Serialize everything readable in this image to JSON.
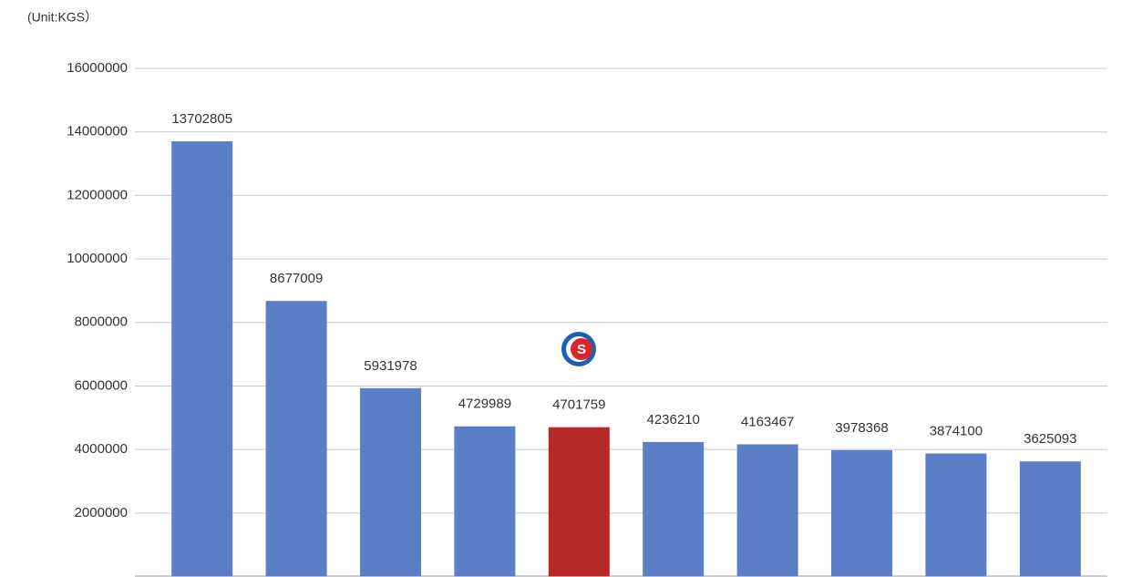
{
  "chart_data": {
    "type": "bar",
    "unit_label": "(Unit:KGS）",
    "categories": [
      null,
      null,
      null,
      null,
      null,
      null,
      null,
      null,
      null,
      null
    ],
    "values": [
      13702805,
      8677009,
      5931978,
      4729989,
      4701759,
      4236210,
      4163467,
      3978368,
      3874100,
      3625093
    ],
    "colors": [
      "#5b7fc6",
      "#5b7fc6",
      "#5b7fc6",
      "#5b7fc6",
      "#b52a26",
      "#5b7fc6",
      "#5b7fc6",
      "#5b7fc6",
      "#5b7fc6",
      "#5b7fc6"
    ],
    "ylim": [
      0,
      16000000
    ],
    "yticks": [
      2000000,
      4000000,
      6000000,
      8000000,
      10000000,
      12000000,
      14000000,
      16000000
    ],
    "grid": true
  }
}
